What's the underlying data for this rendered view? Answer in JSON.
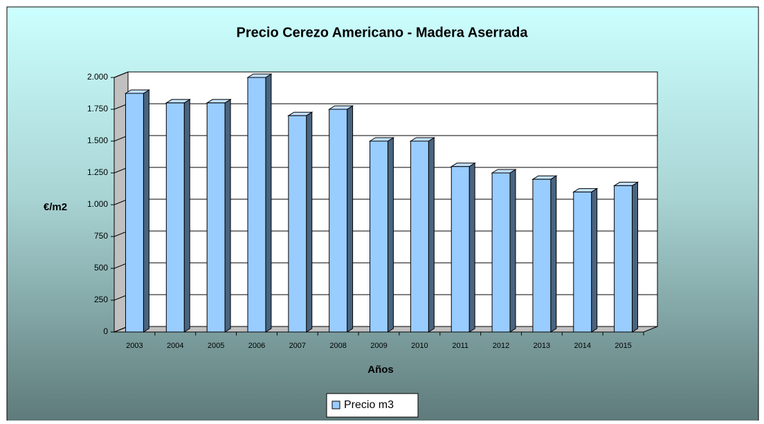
{
  "chart_data": {
    "type": "bar3d",
    "title": "Precio Cerezo Americano - Madera Aserrada",
    "x_label": "Años",
    "y_label": "€/m2",
    "categories": [
      "2003",
      "2004",
      "2005",
      "2006",
      "2007",
      "2008",
      "2009",
      "2010",
      "2011",
      "2012",
      "2013",
      "2014",
      "2015"
    ],
    "series": [
      {
        "name": "Precio m3",
        "color": "#99ccff",
        "values": [
          1875,
          1800,
          1800,
          2000,
          1700,
          1750,
          1500,
          1500,
          1300,
          1250,
          1200,
          1100,
          1150
        ]
      }
    ],
    "ylim": [
      0,
      2000
    ],
    "yticks": [
      0,
      250,
      500,
      750,
      {
        "value": 1000,
        "label": "1.000"
      },
      {
        "value": 1250,
        "label": "1.250"
      },
      {
        "value": 1500,
        "label": "1.500"
      },
      {
        "value": 1750,
        "label": "1.750"
      },
      {
        "value": 2000,
        "label": "2.000"
      }
    ],
    "grid": true,
    "legend": "bottom"
  }
}
